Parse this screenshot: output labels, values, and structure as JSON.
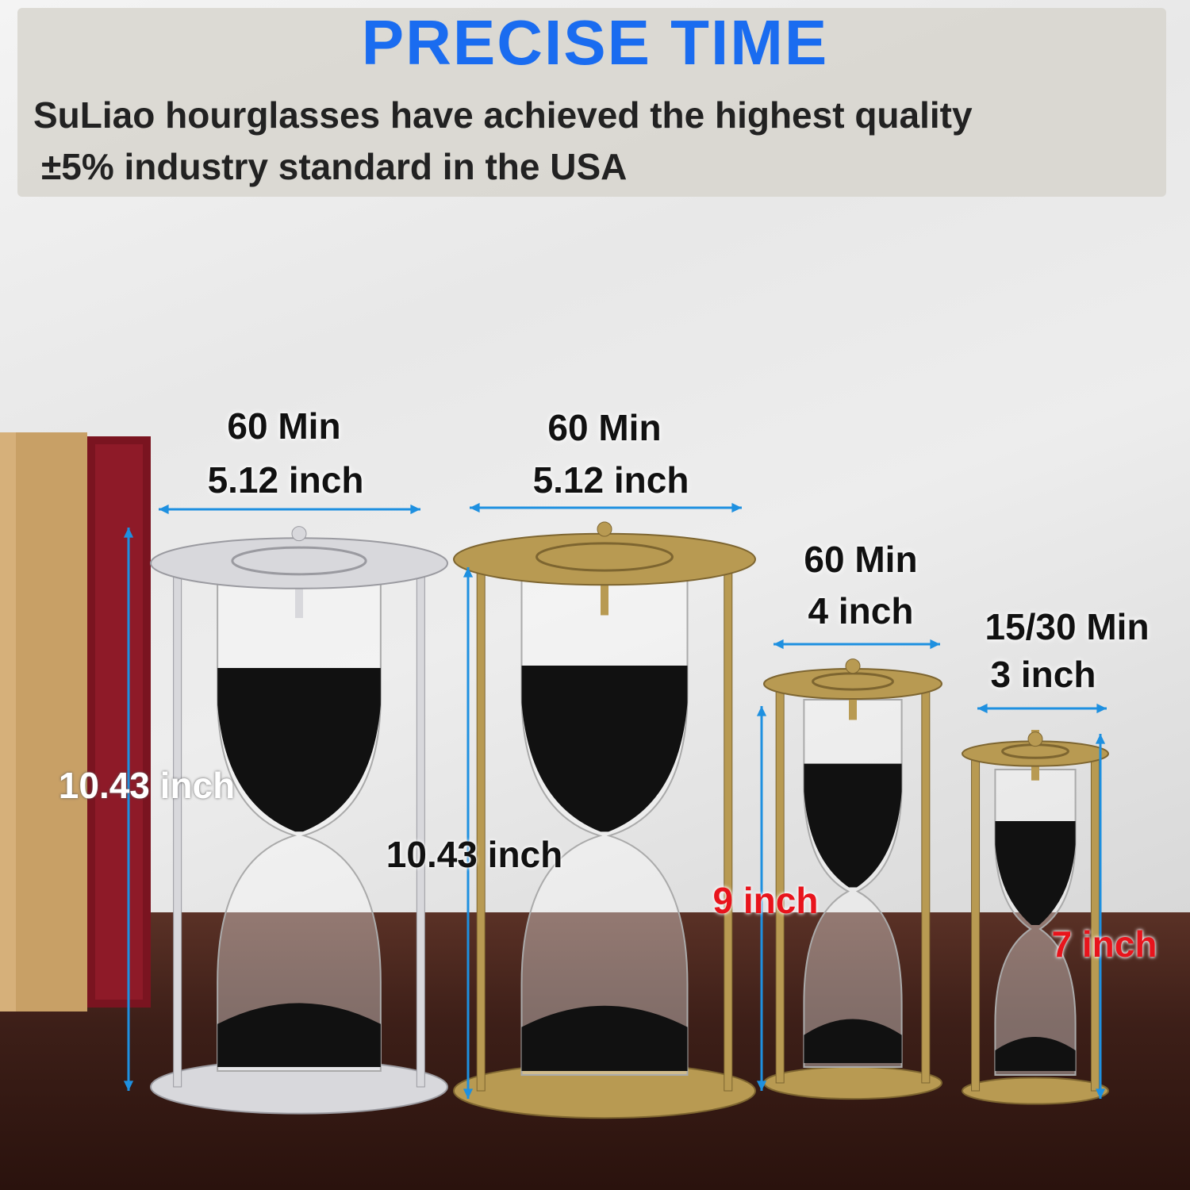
{
  "header": {
    "title": "PRECISE TIME",
    "line1": "SuLiao hourglasses have achieved the highest quality",
    "line2": "±5% industry standard in the USA"
  },
  "colors": {
    "title": "#1a6cf0",
    "arrow": "#1e90e0",
    "red_label": "#e8141c"
  },
  "products": [
    {
      "time": "60 Min",
      "width": "5.12 inch",
      "height": "10.43 inch",
      "finish": "silver"
    },
    {
      "time": "60 Min",
      "width": "5.12 inch",
      "height": "10.43 inch",
      "finish": "brass"
    },
    {
      "time": "60 Min",
      "width": "4 inch",
      "height": "9 inch",
      "finish": "brass"
    },
    {
      "time": "15/30 Min",
      "width": "3 inch",
      "height": "7 inch",
      "finish": "brass"
    }
  ]
}
